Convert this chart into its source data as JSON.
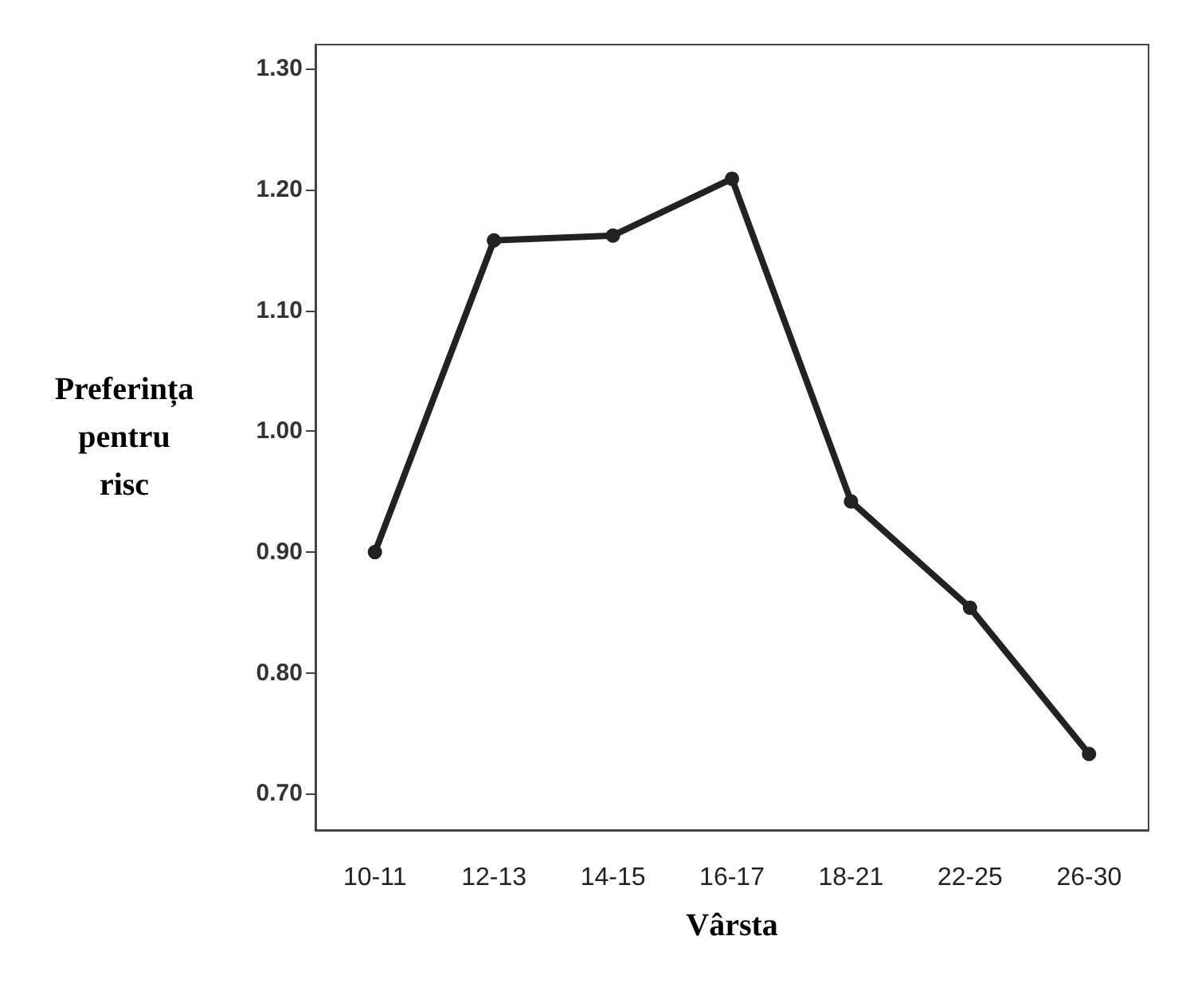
{
  "chart_data": {
    "type": "line",
    "xlabel": "Vârsta",
    "ylabel": "Preferința pentru risc",
    "categories": [
      "10-11",
      "12-13",
      "14-15",
      "16-17",
      "18-21",
      "22-25",
      "26-30"
    ],
    "series": [
      {
        "color": "#222222",
        "values": [
          0.9,
          1.158,
          1.162,
          1.209,
          0.942,
          0.854,
          0.733
        ]
      }
    ],
    "ylim": [
      0.67,
      1.32
    ],
    "yticks": [
      {
        "value": 0.7,
        "label": "0.70"
      },
      {
        "value": 0.8,
        "label": "0.80"
      },
      {
        "value": 0.9,
        "label": "0.90"
      },
      {
        "value": 1.0,
        "label": "1.00"
      },
      {
        "value": 1.1,
        "label": "1.10"
      },
      {
        "value": 1.2,
        "label": "1.20"
      },
      {
        "value": 1.3,
        "label": "1.30"
      }
    ],
    "grid": false,
    "marker": "circle",
    "line_style": "solid"
  }
}
